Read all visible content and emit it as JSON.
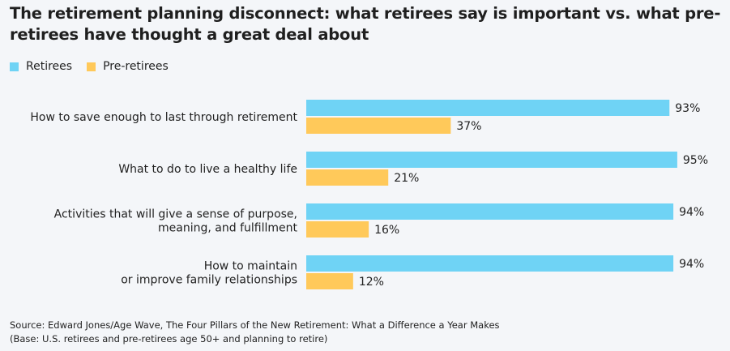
{
  "title": "The retirement planning disconnect: what retirees say is important vs. what pre-retirees have thought a great deal about",
  "colors": {
    "retirees": "#6fd3f5",
    "pre_retirees": "#ffc95a",
    "background": "#f4f6f9"
  },
  "chart_data": {
    "type": "bar",
    "orientation": "horizontal",
    "categories": [
      [
        "How to save enough to last through retirement"
      ],
      [
        "What to do to live a healthy life"
      ],
      [
        "Activities that will give a sense of purpose,",
        "meaning, and fulfillment"
      ],
      [
        "How to maintain",
        "or improve family relationships"
      ]
    ],
    "series": [
      {
        "name": "Retirees",
        "values": [
          93,
          95,
          94,
          94
        ],
        "labels": [
          "93%",
          "95%",
          "94%",
          "94%"
        ]
      },
      {
        "name": "Pre-retirees",
        "values": [
          37,
          21,
          16,
          12
        ],
        "labels": [
          "37%",
          "21%",
          "16%",
          "12%"
        ]
      }
    ],
    "xlim": [
      0,
      100
    ],
    "legend": "top-left",
    "grid": false
  },
  "source": {
    "line1": "Source: Edward Jones/Age Wave, The Four Pillars of the New Retirement: What a Difference a Year Makes",
    "line2": "(Base: U.S. retirees and pre-retirees age 50+ and planning to retire)"
  }
}
